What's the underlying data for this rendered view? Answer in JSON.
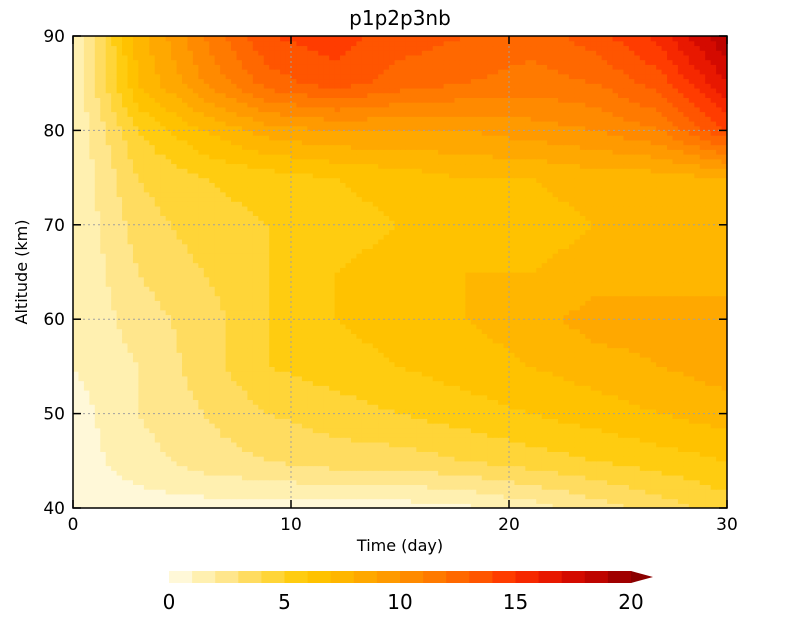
{
  "chart_data": {
    "type": "heatmap",
    "title": "p1p2p3nb",
    "xlabel": "Time (day)",
    "ylabel": "Altitude (km)",
    "xlim": [
      0,
      30
    ],
    "ylim": [
      40,
      90
    ],
    "x_ticks": [
      0,
      10,
      20,
      30
    ],
    "y_ticks": [
      40,
      50,
      60,
      70,
      80,
      90
    ],
    "grid": true,
    "colorbar": {
      "placement": "bottom",
      "levels": [
        0,
        1,
        2,
        3,
        4,
        5,
        6,
        7,
        8,
        9,
        10,
        11,
        12,
        13,
        14,
        15,
        16,
        17,
        18,
        19,
        20
      ],
      "tick_labels": [
        "0",
        "5",
        "10",
        "15",
        "20"
      ],
      "extend": "max",
      "colors": [
        "#fff8d8",
        "#fff0b0",
        "#ffe68c",
        "#ffdc60",
        "#ffd538",
        "#ffcc10",
        "#ffc200",
        "#ffb600",
        "#ffa800",
        "#ff9a00",
        "#ff8a00",
        "#ff7a00",
        "#ff6800",
        "#ff5500",
        "#ff3c00",
        "#f62800",
        "#e81800",
        "#d40a00",
        "#be0400",
        "#a00000",
        "#8a0000"
      ]
    },
    "altitudes": [
      40,
      45,
      50,
      55,
      60,
      65,
      70,
      75,
      80,
      85,
      90
    ],
    "times": [
      0,
      3,
      6,
      9,
      12,
      15,
      18,
      21,
      24,
      27,
      30
    ],
    "values": [
      [
        0.5,
        0.5,
        0.5,
        0.5,
        0.5,
        0.5,
        0.8,
        1.5,
        2.5,
        3.5,
        4.5
      ],
      [
        0.5,
        1.5,
        2.5,
        3.0,
        3.5,
        3.5,
        4.0,
        4.5,
        5.0,
        5.5,
        6.0
      ],
      [
        0.5,
        2.0,
        3.0,
        4.0,
        4.5,
        5.0,
        5.5,
        6.0,
        6.5,
        7.0,
        7.5
      ],
      [
        1.0,
        2.0,
        3.5,
        5.0,
        5.5,
        6.0,
        6.5,
        7.0,
        7.5,
        8.0,
        8.5
      ],
      [
        1.0,
        2.5,
        3.5,
        5.0,
        6.0,
        6.5,
        7.0,
        7.5,
        8.5,
        8.5,
        8.5
      ],
      [
        1.0,
        3.0,
        4.0,
        5.0,
        6.0,
        6.5,
        7.0,
        7.0,
        7.5,
        7.5,
        7.5
      ],
      [
        1.0,
        3.5,
        4.5,
        5.0,
        5.5,
        6.0,
        6.5,
        6.5,
        7.0,
        7.0,
        7.0
      ],
      [
        1.0,
        4.0,
        5.0,
        5.5,
        6.0,
        6.5,
        7.0,
        7.0,
        7.5,
        7.5,
        8.0
      ],
      [
        1.0,
        5.0,
        7.0,
        8.5,
        9.0,
        9.0,
        9.0,
        9.5,
        10.0,
        11.0,
        14.0
      ],
      [
        1.0,
        7.0,
        10.0,
        12.5,
        13.5,
        12.5,
        12.0,
        11.5,
        12.0,
        13.5,
        17.0
      ],
      [
        1.0,
        7.5,
        11.0,
        14.0,
        14.5,
        13.5,
        13.0,
        12.5,
        13.5,
        15.5,
        19.0
      ]
    ]
  }
}
